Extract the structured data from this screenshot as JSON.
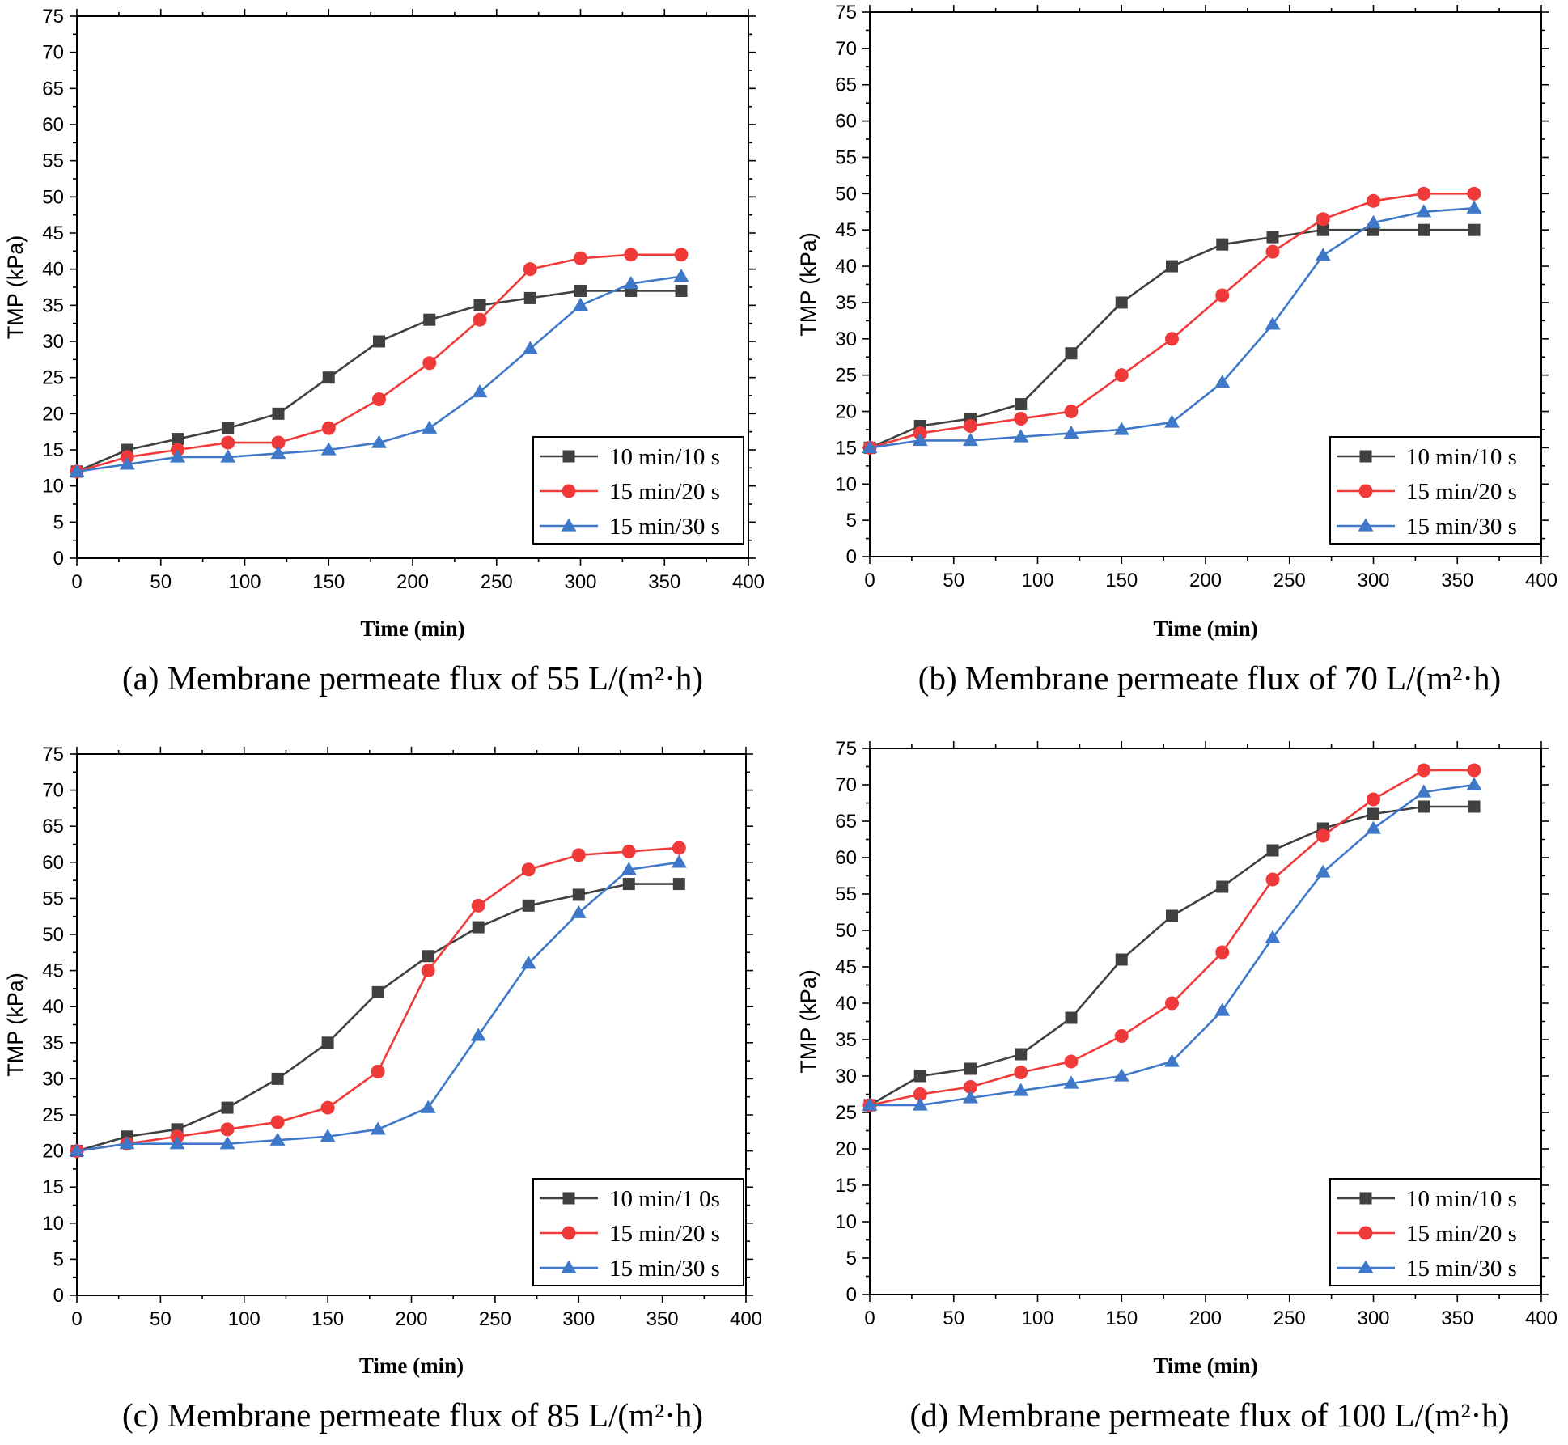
{
  "chart_data": [
    {
      "type": "line",
      "caption": "(a) Membrane permeate flux of 55 L/(m²·h)",
      "xlabel": "Time (min)",
      "ylabel": "TMP (kPa)",
      "xlim": [
        0,
        400
      ],
      "ylim": [
        0,
        75
      ],
      "xticks": [
        0,
        50,
        100,
        150,
        200,
        250,
        300,
        350,
        400
      ],
      "yticks": [
        0,
        5,
        10,
        15,
        20,
        25,
        30,
        35,
        40,
        45,
        50,
        55,
        60,
        65,
        70,
        75
      ],
      "x": [
        0,
        30,
        60,
        90,
        120,
        150,
        180,
        210,
        240,
        270,
        300,
        330,
        360
      ],
      "legend_position": "bottom-right",
      "series": [
        {
          "name": "10 min/10 s",
          "color": "#404040",
          "marker": "square",
          "values": [
            12,
            15,
            16.5,
            18,
            20,
            25,
            30,
            33,
            35,
            36,
            37,
            37,
            37
          ]
        },
        {
          "name": "15 min/20 s",
          "color": "#f03a3a",
          "marker": "circle",
          "values": [
            12,
            14,
            15,
            16,
            16,
            18,
            22,
            27,
            33,
            40,
            41.5,
            42,
            42
          ]
        },
        {
          "name": "15 min/30 s",
          "color": "#3f78c8",
          "marker": "triangle",
          "values": [
            12,
            13,
            14,
            14,
            14.5,
            15,
            16,
            18,
            23,
            29,
            35,
            38,
            39
          ]
        }
      ]
    },
    {
      "type": "line",
      "caption": "(b) Membrane permeate flux of 70 L/(m²·h)",
      "xlabel": "Time (min)",
      "ylabel": "TMP (kPa)",
      "xlim": [
        0,
        400
      ],
      "ylim": [
        0,
        75
      ],
      "xticks": [
        0,
        50,
        100,
        150,
        200,
        250,
        300,
        350,
        400
      ],
      "yticks": [
        0,
        5,
        10,
        15,
        20,
        25,
        30,
        35,
        40,
        45,
        50,
        55,
        60,
        65,
        70,
        75
      ],
      "x": [
        0,
        30,
        60,
        90,
        120,
        150,
        180,
        210,
        240,
        270,
        300,
        330,
        360
      ],
      "legend_position": "bottom-right",
      "series": [
        {
          "name": "10 min/10 s",
          "color": "#404040",
          "marker": "square",
          "values": [
            15,
            18,
            19,
            21,
            28,
            35,
            40,
            43,
            44,
            45,
            45,
            45,
            45
          ]
        },
        {
          "name": "15 min/20 s",
          "color": "#f03a3a",
          "marker": "circle",
          "values": [
            15,
            17,
            18,
            19,
            20,
            25,
            30,
            36,
            42,
            46.5,
            49,
            50,
            50
          ]
        },
        {
          "name": "15 min/30 s",
          "color": "#3f78c8",
          "marker": "triangle",
          "values": [
            15,
            16,
            16,
            16.5,
            17,
            17.5,
            18.5,
            24,
            32,
            41.5,
            46,
            47.5,
            48
          ]
        }
      ]
    },
    {
      "type": "line",
      "caption": "(c) Membrane permeate flux of 85 L/(m²·h)",
      "xlabel": "Time (min)",
      "ylabel": "TMP (kPa)",
      "xlim": [
        0,
        400
      ],
      "ylim": [
        0,
        75
      ],
      "xticks": [
        0,
        50,
        100,
        150,
        200,
        250,
        300,
        350,
        400
      ],
      "yticks": [
        0,
        5,
        10,
        15,
        20,
        25,
        30,
        35,
        40,
        45,
        50,
        55,
        60,
        65,
        70,
        75
      ],
      "x": [
        0,
        30,
        60,
        90,
        120,
        150,
        180,
        210,
        240,
        270,
        300,
        330,
        360
      ],
      "legend_position": "bottom-right",
      "series": [
        {
          "name": "10 min/1 0s",
          "color": "#404040",
          "marker": "square",
          "values": [
            20,
            22,
            23,
            26,
            30,
            35,
            42,
            47,
            51,
            54,
            55.5,
            57,
            57
          ]
        },
        {
          "name": "15 min/20 s",
          "color": "#f03a3a",
          "marker": "circle",
          "values": [
            20,
            21,
            22,
            23,
            24,
            26,
            31,
            45,
            54,
            59,
            61,
            61.5,
            62
          ]
        },
        {
          "name": "15 min/30 s",
          "color": "#3f78c8",
          "marker": "triangle",
          "values": [
            20,
            21,
            21,
            21,
            21.5,
            22,
            23,
            26,
            36,
            46,
            53,
            59,
            60
          ]
        }
      ]
    },
    {
      "type": "line",
      "caption": "(d) Membrane permeate flux of 100 L/(m²·h)",
      "xlabel": "Time (min)",
      "ylabel": "TMP (kPa)",
      "xlim": [
        0,
        400
      ],
      "ylim": [
        0,
        75
      ],
      "xticks": [
        0,
        50,
        100,
        150,
        200,
        250,
        300,
        350,
        400
      ],
      "yticks": [
        0,
        5,
        10,
        15,
        20,
        25,
        30,
        35,
        40,
        45,
        50,
        55,
        60,
        65,
        70,
        75
      ],
      "x": [
        0,
        30,
        60,
        90,
        120,
        150,
        180,
        210,
        240,
        270,
        300,
        330,
        360
      ],
      "legend_position": "bottom-right",
      "series": [
        {
          "name": "10 min/10 s",
          "color": "#404040",
          "marker": "square",
          "values": [
            26,
            30,
            31,
            33,
            38,
            46,
            52,
            56,
            61,
            64,
            66,
            67,
            67
          ]
        },
        {
          "name": "15 min/20 s",
          "color": "#f03a3a",
          "marker": "circle",
          "values": [
            26,
            27.5,
            28.5,
            30.5,
            32,
            35.5,
            40,
            47,
            57,
            63,
            68,
            72,
            72
          ]
        },
        {
          "name": "15 min/30 s",
          "color": "#3f78c8",
          "marker": "triangle",
          "values": [
            26,
            26,
            27,
            28,
            29,
            30,
            32,
            39,
            49,
            58,
            64,
            69,
            70
          ]
        }
      ]
    }
  ]
}
